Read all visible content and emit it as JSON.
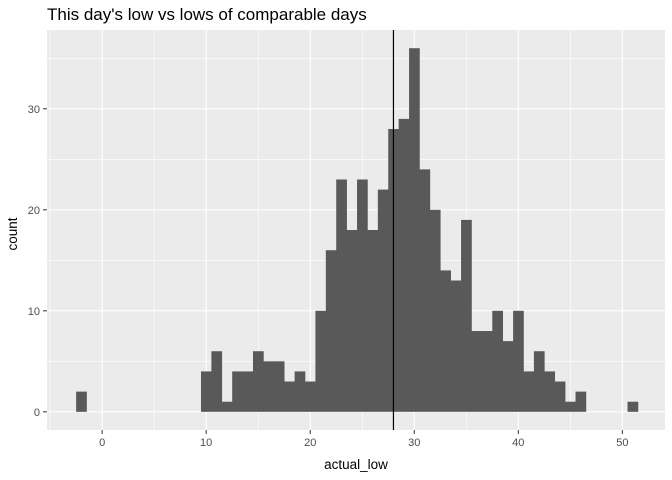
{
  "chart_data": {
    "type": "bar",
    "title": "This day's low vs lows of comparable days",
    "xlabel": "actual_low",
    "ylabel": "count",
    "xlim": [
      -5.3,
      54.1
    ],
    "ylim": [
      -1.8,
      37.8
    ],
    "x_ticks": [
      0,
      10,
      20,
      30,
      40,
      50
    ],
    "y_ticks": [
      0,
      10,
      20,
      30
    ],
    "x_tick_labels": [
      "0",
      "10",
      "20",
      "30",
      "40",
      "50"
    ],
    "y_tick_labels": [
      "0",
      "10",
      "20",
      "30"
    ],
    "bin_width": 1,
    "bins": [
      {
        "x": -2,
        "count": 2
      },
      {
        "x": -1,
        "count": 0
      },
      {
        "x": 0,
        "count": 0
      },
      {
        "x": 1,
        "count": 0
      },
      {
        "x": 2,
        "count": 0
      },
      {
        "x": 3,
        "count": 0
      },
      {
        "x": 4,
        "count": 0
      },
      {
        "x": 5,
        "count": 0
      },
      {
        "x": 6,
        "count": 0
      },
      {
        "x": 7,
        "count": 0
      },
      {
        "x": 8,
        "count": 0
      },
      {
        "x": 9,
        "count": 0
      },
      {
        "x": 10,
        "count": 4
      },
      {
        "x": 11,
        "count": 6
      },
      {
        "x": 12,
        "count": 1
      },
      {
        "x": 13,
        "count": 4
      },
      {
        "x": 14,
        "count": 4
      },
      {
        "x": 15,
        "count": 6
      },
      {
        "x": 16,
        "count": 5
      },
      {
        "x": 17,
        "count": 5
      },
      {
        "x": 18,
        "count": 3
      },
      {
        "x": 19,
        "count": 4
      },
      {
        "x": 20,
        "count": 3
      },
      {
        "x": 21,
        "count": 10
      },
      {
        "x": 22,
        "count": 16
      },
      {
        "x": 23,
        "count": 23
      },
      {
        "x": 24,
        "count": 18
      },
      {
        "x": 25,
        "count": 23
      },
      {
        "x": 26,
        "count": 18
      },
      {
        "x": 27,
        "count": 22
      },
      {
        "x": 28,
        "count": 28
      },
      {
        "x": 29,
        "count": 29
      },
      {
        "x": 30,
        "count": 36
      },
      {
        "x": 31,
        "count": 24
      },
      {
        "x": 32,
        "count": 20
      },
      {
        "x": 33,
        "count": 14
      },
      {
        "x": 34,
        "count": 13
      },
      {
        "x": 35,
        "count": 19
      },
      {
        "x": 36,
        "count": 8
      },
      {
        "x": 37,
        "count": 8
      },
      {
        "x": 38,
        "count": 10
      },
      {
        "x": 39,
        "count": 7
      },
      {
        "x": 40,
        "count": 10
      },
      {
        "x": 41,
        "count": 4
      },
      {
        "x": 42,
        "count": 6
      },
      {
        "x": 43,
        "count": 4
      },
      {
        "x": 44,
        "count": 3
      },
      {
        "x": 45,
        "count": 1
      },
      {
        "x": 46,
        "count": 2
      },
      {
        "x": 47,
        "count": 0
      },
      {
        "x": 48,
        "count": 0
      },
      {
        "x": 49,
        "count": 0
      },
      {
        "x": 50,
        "count": 0
      },
      {
        "x": 51,
        "count": 1
      }
    ],
    "reference_line": {
      "x": 28
    },
    "grid": true,
    "legend": "none",
    "colors": {
      "panel_background": "#ebebeb",
      "grid_major": "#ffffff",
      "bar_fill": "#595959",
      "reference_line": "#000000",
      "tick_label": "#4d4d4d",
      "tick_mark": "#333333",
      "text": "#000000"
    }
  }
}
